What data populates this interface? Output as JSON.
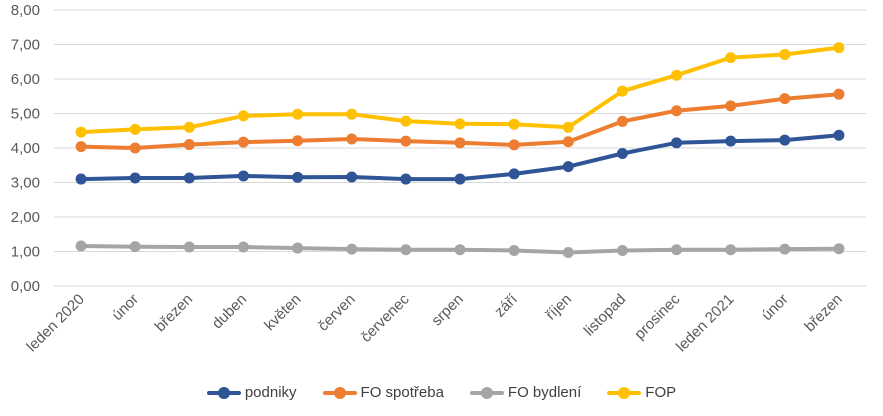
{
  "chart_data": {
    "type": "line",
    "categories": [
      "leden 2020",
      "únor",
      "březen",
      "duben",
      "květen",
      "červen",
      "červenec",
      "srpen",
      "září",
      "říjen",
      "listopad",
      "prosinec",
      "leden 2021",
      "únor",
      "březen"
    ],
    "y_ticks": [
      "0,00",
      "1,00",
      "2,00",
      "3,00",
      "4,00",
      "5,00",
      "6,00",
      "7,00",
      "8,00"
    ],
    "ylim": [
      0,
      8
    ],
    "grid": true,
    "legend_position": "bottom",
    "series": [
      {
        "name": "podniky",
        "color": "#2F5597",
        "values": [
          3.1,
          3.13,
          3.13,
          3.19,
          3.15,
          3.16,
          3.1,
          3.1,
          3.25,
          3.46,
          3.84,
          4.15,
          4.2,
          4.23,
          4.37
        ]
      },
      {
        "name": "FO spotřeba",
        "color": "#ED7D31",
        "values": [
          4.04,
          4.0,
          4.1,
          4.17,
          4.21,
          4.26,
          4.2,
          4.15,
          4.09,
          4.18,
          4.77,
          5.08,
          5.22,
          5.43,
          5.56
        ]
      },
      {
        "name": "FO bydlení",
        "color": "#A5A5A5",
        "values": [
          1.16,
          1.14,
          1.13,
          1.13,
          1.1,
          1.07,
          1.05,
          1.05,
          1.03,
          0.97,
          1.03,
          1.05,
          1.05,
          1.07,
          1.08
        ]
      },
      {
        "name": "FOP",
        "color": "#FFC000",
        "values": [
          4.46,
          4.54,
          4.6,
          4.93,
          4.98,
          4.98,
          4.78,
          4.7,
          4.69,
          4.6,
          5.65,
          6.11,
          6.62,
          6.71,
          6.91
        ]
      }
    ]
  }
}
